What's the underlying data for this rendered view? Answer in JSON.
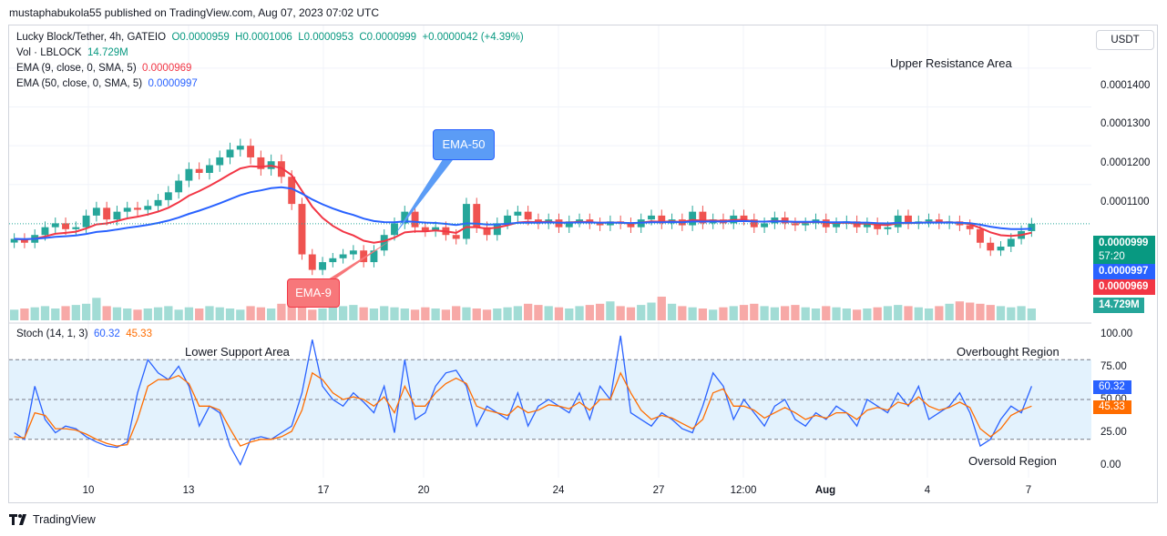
{
  "header": {
    "published": "mustaphabukola55 published on TradingView.com, Aug 07, 2023 07:02 UTC"
  },
  "legend": {
    "symbol": "Lucky Block/Tether, 4h, GATEIO",
    "o": "O0.0000959",
    "h": "H0.0001006",
    "l": "L0.0000953",
    "c": "C0.0000999",
    "change": "+0.0000042 (+4.39%)",
    "vol_label": "Vol · LBLOCK",
    "vol_value": "14.729M",
    "ema9_label": "EMA (9, close, 0, SMA, 5)",
    "ema9_value": "0.0000969",
    "ema50_label": "EMA (50, close, 0, SMA, 5)",
    "ema50_value": "0.0000997",
    "stoch_label": "Stoch (14, 1, 3)",
    "stoch_k": "60.32",
    "stoch_d": "45.33"
  },
  "unit_button": "USDT",
  "annotations": {
    "upper_resistance": "Upper Resistance Area",
    "lower_support": "Lower Support Area",
    "overbought": "Overbought Region",
    "oversold": "Oversold Region",
    "ema50_callout": "EMA-50",
    "ema9_callout": "EMA-9"
  },
  "price_tags": {
    "last": "0.0000999",
    "countdown": "57:20",
    "ema50": "0.0000997",
    "ema9": "0.0000969",
    "volume": "14.729M"
  },
  "stoch_tags": {
    "k": "60.32",
    "d": "45.33"
  },
  "footer": {
    "brand": "TradingView"
  },
  "colors": {
    "up": "#26a69a",
    "down": "#ef5350",
    "ema9": "#f23645",
    "ema50": "#2962ff",
    "stoch_k": "#2962ff",
    "stoch_d": "#ff6d00",
    "band": "#e3f2fd"
  },
  "chart_data": [
    {
      "type": "candlestick",
      "title": "Lucky Block/Tether, 4h, GATEIO",
      "x_ticks": [
        "10",
        "13",
        "17",
        "20",
        "24",
        "27",
        "12:00",
        "Aug",
        "4",
        "7"
      ],
      "y_ticks": [
        "0.0001400",
        "0.0001300",
        "0.0001200",
        "0.0001100"
      ],
      "ylim": [
        7.5e-05,
        0.000151
      ],
      "ohlc_close_series": [
        9.6e-05,
        9.5e-05,
        9.7e-05,
        9.9e-05,
        0.0001,
        9.85e-05,
        9.9e-05,
        0.000102,
        0.000104,
        0.000101,
        0.000103,
        0.000104,
        0.0001035,
        0.0001045,
        0.000106,
        0.000108,
        0.000111,
        0.000114,
        0.000113,
        0.000115,
        0.000117,
        0.000119,
        0.00012,
        0.000117,
        0.000114,
        0.000116,
        0.000112,
        0.000105,
        9.2e-05,
        8.8e-05,
        9e-05,
        9.1e-05,
        9.2e-05,
        9.3e-05,
        9e-05,
        9.3e-05,
        9.7e-05,
        0.0001,
        0.000103,
        9.9e-05,
        9.8e-05,
        9.9e-05,
        9.7e-05,
        9.6e-05,
        0.000105,
        9.9e-05,
        9.7e-05,
        0.0001,
        0.000102,
        0.000103,
        0.000101,
        0.0001,
        0.000101,
        9.9e-05,
        0.0001005,
        0.000101,
        0.0001,
        9.95e-05,
        0.0001005,
        0.0001,
        9.9e-05,
        0.000101,
        0.000102,
        0.0001,
        0.000101,
        9.95e-05,
        0.000103,
        0.0001,
        0.000101,
        0.0001,
        0.000102,
        0.000101,
        9.9e-05,
        0.0001,
        0.0001015,
        0.0001,
        9.95e-05,
        0.0001,
        0.000101,
        9.9e-05,
        0.0001,
        0.0001005,
        9.9e-05,
        0.0001,
        9.85e-05,
        9.9e-05,
        0.000102,
        0.0001,
        0.0001005,
        0.000101,
        0.0001,
        0.0001005,
        9.95e-05,
        9.85e-05,
        9.5e-05,
        9.3e-05,
        9.4e-05,
        9.6e-05,
        9.8e-05,
        9.99e-05
      ],
      "volume_series": [
        0.45,
        0.5,
        0.55,
        0.6,
        0.5,
        0.6,
        0.65,
        0.7,
        0.95,
        0.6,
        0.55,
        0.5,
        0.45,
        0.5,
        0.55,
        0.6,
        0.45,
        0.55,
        0.5,
        0.6,
        0.55,
        0.5,
        0.45,
        0.6,
        0.55,
        0.5,
        0.7,
        0.65,
        0.7,
        0.45,
        0.5,
        0.55,
        0.6,
        0.65,
        0.55,
        0.5,
        0.6,
        0.55,
        0.5,
        0.45,
        0.55,
        0.5,
        0.45,
        0.6,
        0.55,
        0.5,
        0.45,
        0.5,
        0.55,
        0.6,
        0.7,
        0.65,
        0.6,
        0.55,
        0.5,
        0.6,
        0.65,
        0.7,
        0.8,
        0.6,
        0.55,
        0.65,
        0.75,
        1.0,
        0.7,
        0.6,
        0.55,
        0.5,
        0.45,
        0.55,
        0.6,
        0.65,
        0.7,
        0.6,
        0.55,
        0.6,
        0.65,
        0.55,
        0.5,
        0.6,
        0.55,
        0.5,
        0.45,
        0.5,
        0.55,
        0.6,
        0.65,
        0.6,
        0.55,
        0.5,
        0.6,
        0.7,
        0.8,
        0.75,
        0.7,
        0.65,
        0.6,
        0.55,
        0.6,
        0.5
      ]
    },
    {
      "type": "line",
      "title": "Stoch (14, 1, 3)",
      "y_ticks": [
        "100.00",
        "75.00",
        "50.00",
        "25.00",
        "0.00"
      ],
      "ylim": [
        0,
        100
      ],
      "overbought_level": 80,
      "oversold_level": 20,
      "series": [
        {
          "name": "%K",
          "values": [
            25,
            20,
            60,
            35,
            25,
            30,
            28,
            22,
            18,
            15,
            14,
            18,
            55,
            80,
            70,
            65,
            75,
            60,
            30,
            45,
            40,
            15,
            1,
            20,
            22,
            20,
            25,
            30,
            55,
            95,
            60,
            50,
            45,
            55,
            48,
            40,
            60,
            25,
            80,
            35,
            40,
            60,
            70,
            72,
            60,
            30,
            45,
            40,
            35,
            55,
            30,
            45,
            50,
            45,
            40,
            55,
            35,
            60,
            50,
            98,
            40,
            35,
            30,
            40,
            35,
            28,
            25,
            45,
            70,
            60,
            35,
            50,
            40,
            30,
            45,
            50,
            35,
            30,
            40,
            35,
            45,
            40,
            30,
            50,
            45,
            40,
            55,
            45,
            60,
            35,
            40,
            45,
            55,
            40,
            15,
            20,
            35,
            45,
            40,
            60
          ]
        },
        {
          "name": "%D",
          "values": [
            22,
            21,
            40,
            38,
            28,
            28,
            27,
            24,
            20,
            17,
            15,
            16,
            35,
            60,
            65,
            65,
            68,
            62,
            45,
            45,
            42,
            28,
            15,
            18,
            20,
            20,
            22,
            26,
            42,
            70,
            65,
            55,
            50,
            52,
            50,
            45,
            52,
            40,
            60,
            45,
            45,
            55,
            62,
            66,
            62,
            45,
            42,
            40,
            38,
            45,
            40,
            42,
            46,
            45,
            43,
            48,
            42,
            50,
            50,
            70,
            55,
            42,
            35,
            38,
            36,
            32,
            28,
            35,
            55,
            58,
            45,
            45,
            42,
            36,
            40,
            44,
            40,
            35,
            38,
            36,
            40,
            40,
            35,
            42,
            44,
            42,
            48,
            46,
            52,
            45,
            42,
            44,
            48,
            44,
            28,
            22,
            28,
            38,
            42,
            45
          ]
        }
      ]
    }
  ]
}
